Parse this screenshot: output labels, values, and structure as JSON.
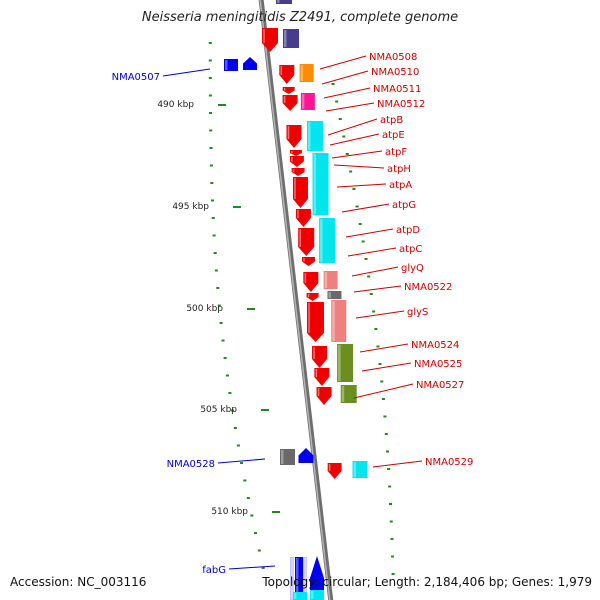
{
  "title": "Neisseria meningitidis Z2491, complete genome",
  "footer": {
    "accession": "Accession: NC_003116",
    "summary": "Topology: circular; Length: 2,184,406 bp; Genes: 1,979"
  },
  "colors": {
    "forward_label": "#cc0000",
    "reverse_label": "#0000cc",
    "axis": "#808080",
    "tick": "#228822",
    "gene_red": "#ee0000",
    "gene_blue": "#0000ee",
    "cyan": "#00e5ee",
    "salmon": "#f08080",
    "olive": "#6b8e23",
    "orange": "#ff8c00",
    "magenta": "#ff1493",
    "gray": "#696969",
    "slate": "#483d8b"
  },
  "scale_labels": [
    "490 kbp",
    "495 kbp",
    "500 kbp",
    "505 kbp",
    "510 kbp"
  ],
  "forward_genes": [
    "NMA0508",
    "NMA0510",
    "NMA0511",
    "NMA0512",
    "atpB",
    "atpE",
    "atpF",
    "atpH",
    "atpA",
    "atpG",
    "atpD",
    "atpC",
    "glyQ",
    "NMA0522",
    "glyS",
    "NMA0524",
    "NMA0525",
    "NMA0527",
    "NMA0529"
  ],
  "reverse_genes": [
    "NMA0507",
    "NMA0528",
    "fabG"
  ]
}
